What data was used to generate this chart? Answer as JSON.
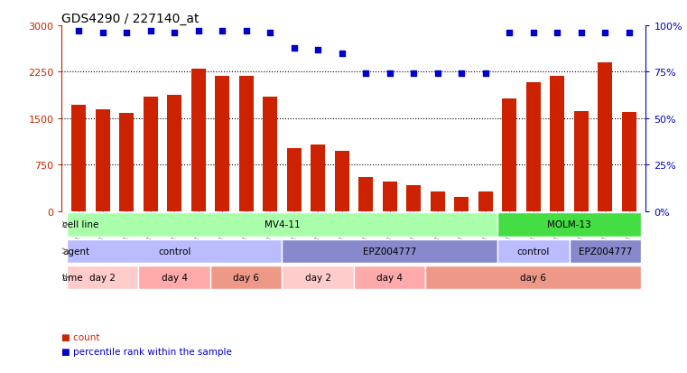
{
  "title": "GDS4290 / 227140_at",
  "samples": [
    "GSM739151",
    "GSM739152",
    "GSM739153",
    "GSM739157",
    "GSM739158",
    "GSM739159",
    "GSM739163",
    "GSM739164",
    "GSM739165",
    "GSM739148",
    "GSM739149",
    "GSM739150",
    "GSM739154",
    "GSM739155",
    "GSM739156",
    "GSM739160",
    "GSM739161",
    "GSM739162",
    "GSM739169",
    "GSM739170",
    "GSM739171",
    "GSM739166",
    "GSM739167",
    "GSM739168"
  ],
  "counts": [
    1720,
    1650,
    1580,
    1850,
    1870,
    2300,
    2180,
    2180,
    1850,
    1020,
    1080,
    980,
    550,
    480,
    420,
    310,
    230,
    310,
    1820,
    2080,
    2180,
    1620,
    2400,
    1600
  ],
  "percentile": [
    97,
    96,
    96,
    97,
    96,
    97,
    97,
    97,
    96,
    88,
    87,
    85,
    74,
    74,
    74,
    74,
    74,
    74,
    96,
    96,
    96,
    96,
    96,
    96
  ],
  "bar_color": "#cc2200",
  "dot_color": "#0000cc",
  "ylim_left": [
    0,
    3000
  ],
  "ylim_right": [
    0,
    100
  ],
  "yticks_left": [
    0,
    750,
    1500,
    2250,
    3000
  ],
  "yticks_right": [
    0,
    25,
    50,
    75,
    100
  ],
  "hlines": [
    750,
    1500,
    2250
  ],
  "cell_line_blocks": [
    {
      "label": "MV4-11",
      "start": 0,
      "end": 18,
      "color": "#aaffaa"
    },
    {
      "label": "MOLM-13",
      "start": 18,
      "end": 24,
      "color": "#44dd44"
    }
  ],
  "agent_blocks": [
    {
      "label": "control",
      "start": 0,
      "end": 9,
      "color": "#bbbbff"
    },
    {
      "label": "EPZ004777",
      "start": 9,
      "end": 18,
      "color": "#8888cc"
    },
    {
      "label": "control",
      "start": 18,
      "end": 21,
      "color": "#bbbbff"
    },
    {
      "label": "EPZ004777",
      "start": 21,
      "end": 24,
      "color": "#8888cc"
    }
  ],
  "time_blocks": [
    {
      "label": "day 2",
      "start": 0,
      "end": 3,
      "color": "#ffcccc"
    },
    {
      "label": "day 4",
      "start": 3,
      "end": 6,
      "color": "#ffaaaa"
    },
    {
      "label": "day 6",
      "start": 6,
      "end": 9,
      "color": "#ee9988"
    },
    {
      "label": "day 2",
      "start": 9,
      "end": 12,
      "color": "#ffcccc"
    },
    {
      "label": "day 4",
      "start": 12,
      "end": 15,
      "color": "#ffaaaa"
    },
    {
      "label": "day 6",
      "start": 15,
      "end": 24,
      "color": "#ee9988"
    }
  ],
  "row_labels": [
    "cell line",
    "agent",
    "time"
  ],
  "background_color": "#ffffff",
  "left_axis_color": "#cc2200",
  "right_axis_color": "#0000cc",
  "legend_items": [
    {
      "label": "count",
      "color": "#cc2200"
    },
    {
      "label": "percentile rank within the sample",
      "color": "#0000cc"
    }
  ]
}
